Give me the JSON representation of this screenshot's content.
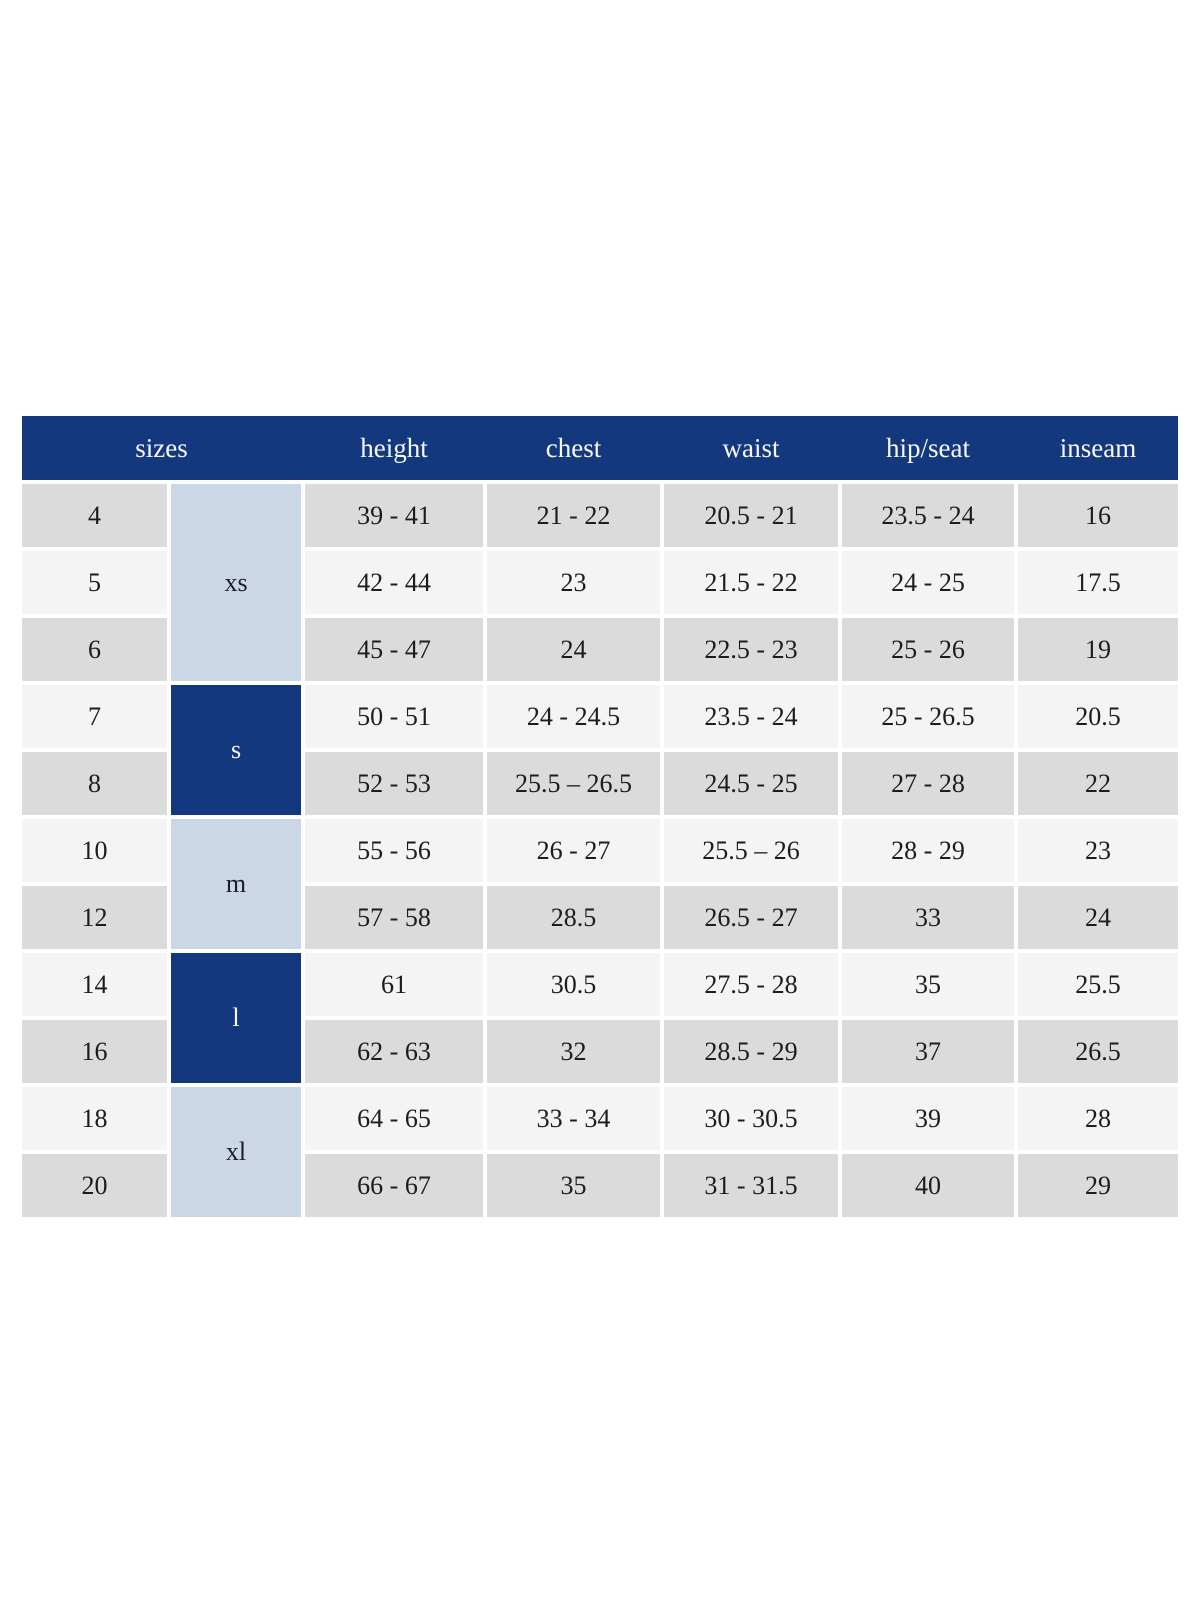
{
  "colors": {
    "header_navy": "#14387e",
    "group_light_blue": "#ccd7e5",
    "row_gray": "#dbdbdb",
    "row_offwhite": "#f4f4f4",
    "header_text": "#f8f8f8",
    "body_text": "#1c1c1c",
    "page_background": "#ffffff"
  },
  "table": {
    "header": {
      "sizes": "sizes",
      "height": "height",
      "chest": "chest",
      "waist": "waist",
      "hip_seat": "hip/seat",
      "inseam": "inseam"
    },
    "groups": [
      {
        "label": "xs",
        "rows_spanned": 3,
        "style": "light-blue"
      },
      {
        "label": "s",
        "rows_spanned": 2,
        "style": "navy"
      },
      {
        "label": "m",
        "rows_spanned": 2,
        "style": "light-blue"
      },
      {
        "label": "l",
        "rows_spanned": 2,
        "style": "navy"
      },
      {
        "label": "xl",
        "rows_spanned": 2,
        "style": "light-blue"
      }
    ],
    "rows": [
      {
        "size": "4",
        "height": "39 - 41",
        "chest": "21 - 22",
        "waist": "20.5 - 21",
        "hip_seat": "23.5 - 24",
        "inseam": "16"
      },
      {
        "size": "5",
        "height": "42 - 44",
        "chest": "23",
        "waist": "21.5 - 22",
        "hip_seat": "24 - 25",
        "inseam": "17.5"
      },
      {
        "size": "6",
        "height": "45 - 47",
        "chest": "24",
        "waist": "22.5 - 23",
        "hip_seat": "25 - 26",
        "inseam": "19"
      },
      {
        "size": "7",
        "height": "50 - 51",
        "chest": "24 - 24.5",
        "waist": "23.5 - 24",
        "hip_seat": "25 - 26.5",
        "inseam": "20.5"
      },
      {
        "size": "8",
        "height": "52 - 53",
        "chest": "25.5 – 26.5",
        "waist": "24.5 - 25",
        "hip_seat": "27 - 28",
        "inseam": "22"
      },
      {
        "size": "10",
        "height": "55 - 56",
        "chest": "26 - 27",
        "waist": "25.5 – 26",
        "hip_seat": "28 - 29",
        "inseam": "23"
      },
      {
        "size": "12",
        "height": "57 - 58",
        "chest": "28.5",
        "waist": "26.5 - 27",
        "hip_seat": "33",
        "inseam": "24"
      },
      {
        "size": "14",
        "height": "61",
        "chest": "30.5",
        "waist": "27.5 - 28",
        "hip_seat": "35",
        "inseam": "25.5"
      },
      {
        "size": "16",
        "height": "62 - 63",
        "chest": "32",
        "waist": "28.5 - 29",
        "hip_seat": "37",
        "inseam": "26.5"
      },
      {
        "size": "18",
        "height": "64 - 65",
        "chest": "33 - 34",
        "waist": "30 - 30.5",
        "hip_seat": "39",
        "inseam": "28"
      },
      {
        "size": "20",
        "height": "66 - 67",
        "chest": "35",
        "waist": "31 - 31.5",
        "hip_seat": "40",
        "inseam": "29"
      }
    ]
  }
}
